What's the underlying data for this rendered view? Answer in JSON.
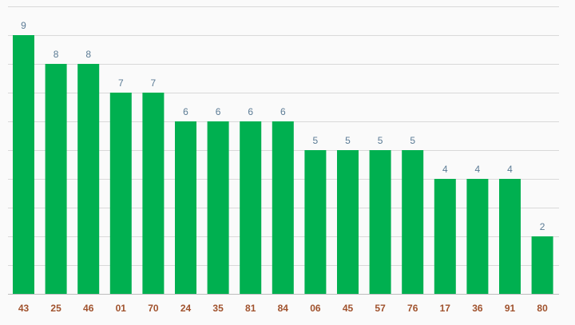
{
  "chart_data": {
    "type": "bar",
    "categories": [
      "43",
      "25",
      "46",
      "01",
      "70",
      "24",
      "35",
      "81",
      "84",
      "06",
      "45",
      "57",
      "76",
      "17",
      "36",
      "91",
      "80"
    ],
    "values": [
      9,
      8,
      8,
      7,
      7,
      6,
      6,
      6,
      6,
      5,
      5,
      5,
      5,
      4,
      4,
      4,
      2
    ],
    "title": "",
    "xlabel": "",
    "ylabel": "",
    "ylim": [
      0,
      10
    ],
    "grid": true,
    "legend": "none",
    "data_labels": true,
    "bar_color": "#00b050",
    "value_label_color": "#5b7b95",
    "tick_label_color": "#a0522d"
  }
}
